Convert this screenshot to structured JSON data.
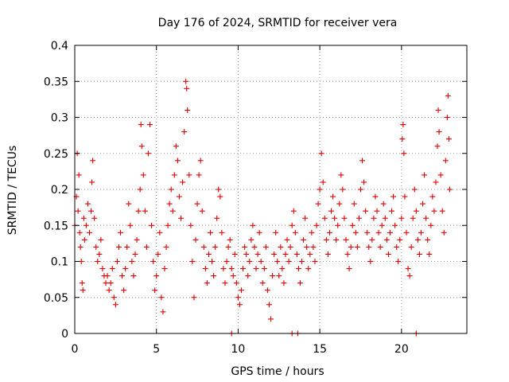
{
  "chart_data": {
    "type": "scatter",
    "title": "Day 176 of 2024, SRMTID for receiver vera",
    "xlabel": "GPS time / hours",
    "ylabel": "SRMTID / TECUs",
    "xlim": [
      0,
      24
    ],
    "ylim": [
      0,
      0.4
    ],
    "xticks": [
      0,
      5,
      10,
      15,
      20
    ],
    "xtick_labels": [
      "0",
      "5",
      "10",
      "15",
      "20"
    ],
    "yticks": [
      0,
      0.05,
      0.1,
      0.15,
      0.2,
      0.25,
      0.3,
      0.35,
      0.4
    ],
    "ytick_labels": [
      "0",
      "0.05",
      "0.1",
      "0.15",
      "0.2",
      "0.25",
      "0.3",
      "0.35",
      "0.4"
    ],
    "grid": true,
    "marker": "+",
    "color": "#e00000",
    "series": [
      {
        "name": "SRMTID",
        "points": [
          [
            0.0,
            0.15
          ],
          [
            0.1,
            0.19
          ],
          [
            0.15,
            0.25
          ],
          [
            0.2,
            0.17
          ],
          [
            0.25,
            0.22
          ],
          [
            0.3,
            0.14
          ],
          [
            0.35,
            0.12
          ],
          [
            0.4,
            0.1
          ],
          [
            0.45,
            0.07
          ],
          [
            0.5,
            0.06
          ],
          [
            0.55,
            0.16
          ],
          [
            0.6,
            0.13
          ],
          [
            0.7,
            0.15
          ],
          [
            0.8,
            0.18
          ],
          [
            0.9,
            0.14
          ],
          [
            1.0,
            0.17
          ],
          [
            1.05,
            0.21
          ],
          [
            1.1,
            0.24
          ],
          [
            1.2,
            0.16
          ],
          [
            1.3,
            0.12
          ],
          [
            1.4,
            0.1
          ],
          [
            1.5,
            0.11
          ],
          [
            1.6,
            0.13
          ],
          [
            1.7,
            0.09
          ],
          [
            1.8,
            0.08
          ],
          [
            1.9,
            0.07
          ],
          [
            2.0,
            0.08
          ],
          [
            2.1,
            0.06
          ],
          [
            2.2,
            0.07
          ],
          [
            2.3,
            0.09
          ],
          [
            2.4,
            0.05
          ],
          [
            2.5,
            0.04
          ],
          [
            2.6,
            0.1
          ],
          [
            2.7,
            0.12
          ],
          [
            2.8,
            0.14
          ],
          [
            2.9,
            0.08
          ],
          [
            3.0,
            0.06
          ],
          [
            3.1,
            0.09
          ],
          [
            3.2,
            0.12
          ],
          [
            3.3,
            0.18
          ],
          [
            3.4,
            0.15
          ],
          [
            3.5,
            0.1
          ],
          [
            3.6,
            0.08
          ],
          [
            3.7,
            0.11
          ],
          [
            3.8,
            0.13
          ],
          [
            3.9,
            0.17
          ],
          [
            4.0,
            0.2
          ],
          [
            4.05,
            0.29
          ],
          [
            4.1,
            0.26
          ],
          [
            4.2,
            0.22
          ],
          [
            4.3,
            0.17
          ],
          [
            4.4,
            0.12
          ],
          [
            4.5,
            0.25
          ],
          [
            4.6,
            0.29
          ],
          [
            4.7,
            0.15
          ],
          [
            4.8,
            0.1
          ],
          [
            4.9,
            0.06
          ],
          [
            5.0,
            0.08
          ],
          [
            5.1,
            0.11
          ],
          [
            5.2,
            0.14
          ],
          [
            5.3,
            0.05
          ],
          [
            5.4,
            0.03
          ],
          [
            5.5,
            0.09
          ],
          [
            5.6,
            0.12
          ],
          [
            5.7,
            0.15
          ],
          [
            5.8,
            0.18
          ],
          [
            5.9,
            0.2
          ],
          [
            6.0,
            0.17
          ],
          [
            6.1,
            0.22
          ],
          [
            6.2,
            0.26
          ],
          [
            6.3,
            0.24
          ],
          [
            6.4,
            0.19
          ],
          [
            6.5,
            0.16
          ],
          [
            6.6,
            0.21
          ],
          [
            6.7,
            0.28
          ],
          [
            6.8,
            0.35
          ],
          [
            6.85,
            0.34
          ],
          [
            6.9,
            0.31
          ],
          [
            7.0,
            0.22
          ],
          [
            7.1,
            0.15
          ],
          [
            7.2,
            0.1
          ],
          [
            7.3,
            0.05
          ],
          [
            7.4,
            0.13
          ],
          [
            7.5,
            0.18
          ],
          [
            7.6,
            0.22
          ],
          [
            7.7,
            0.24
          ],
          [
            7.8,
            0.17
          ],
          [
            7.9,
            0.12
          ],
          [
            8.0,
            0.09
          ],
          [
            8.1,
            0.07
          ],
          [
            8.2,
            0.11
          ],
          [
            8.3,
            0.14
          ],
          [
            8.4,
            0.1
          ],
          [
            8.5,
            0.08
          ],
          [
            8.6,
            0.12
          ],
          [
            8.7,
            0.16
          ],
          [
            8.8,
            0.2
          ],
          [
            8.9,
            0.19
          ],
          [
            9.0,
            0.14
          ],
          [
            9.1,
            0.09
          ],
          [
            9.2,
            0.07
          ],
          [
            9.3,
            0.1
          ],
          [
            9.4,
            0.12
          ],
          [
            9.5,
            0.13
          ],
          [
            9.6,
            0.09
          ],
          [
            9.7,
            0.08
          ],
          [
            9.8,
            0.11
          ],
          [
            9.9,
            0.07
          ],
          [
            10.0,
            0.05
          ],
          [
            10.1,
            0.04
          ],
          [
            10.2,
            0.06
          ],
          [
            10.3,
            0.09
          ],
          [
            10.4,
            0.12
          ],
          [
            10.5,
            0.11
          ],
          [
            10.6,
            0.08
          ],
          [
            10.7,
            0.1
          ],
          [
            10.8,
            0.13
          ],
          [
            10.9,
            0.15
          ],
          [
            11.0,
            0.12
          ],
          [
            11.1,
            0.09
          ],
          [
            11.2,
            0.11
          ],
          [
            11.3,
            0.14
          ],
          [
            11.4,
            0.1
          ],
          [
            11.5,
            0.07
          ],
          [
            11.6,
            0.09
          ],
          [
            11.7,
            0.12
          ],
          [
            11.8,
            0.06
          ],
          [
            11.9,
            0.04
          ],
          [
            12.0,
            0.02
          ],
          [
            12.1,
            0.08
          ],
          [
            12.2,
            0.11
          ],
          [
            12.3,
            0.14
          ],
          [
            12.4,
            0.1
          ],
          [
            12.5,
            0.08
          ],
          [
            12.6,
            0.12
          ],
          [
            12.7,
            0.09
          ],
          [
            12.8,
            0.07
          ],
          [
            12.9,
            0.11
          ],
          [
            13.0,
            0.13
          ],
          [
            13.1,
            0.1
          ],
          [
            13.2,
            0.12
          ],
          [
            13.3,
            0.15
          ],
          [
            13.4,
            0.17
          ],
          [
            13.5,
            0.14
          ],
          [
            13.6,
            0.11
          ],
          [
            13.7,
            0.09
          ],
          [
            13.8,
            0.07
          ],
          [
            13.9,
            0.1
          ],
          [
            14.0,
            0.13
          ],
          [
            14.1,
            0.16
          ],
          [
            14.2,
            0.12
          ],
          [
            14.3,
            0.09
          ],
          [
            14.4,
            0.11
          ],
          [
            14.5,
            0.14
          ],
          [
            14.6,
            0.12
          ],
          [
            14.7,
            0.1
          ],
          [
            14.8,
            0.15
          ],
          [
            14.9,
            0.18
          ],
          [
            15.0,
            0.2
          ],
          [
            15.1,
            0.25
          ],
          [
            15.2,
            0.21
          ],
          [
            15.3,
            0.16
          ],
          [
            15.4,
            0.13
          ],
          [
            15.5,
            0.11
          ],
          [
            15.6,
            0.14
          ],
          [
            15.7,
            0.17
          ],
          [
            15.8,
            0.19
          ],
          [
            15.9,
            0.16
          ],
          [
            16.0,
            0.13
          ],
          [
            16.1,
            0.15
          ],
          [
            16.2,
            0.18
          ],
          [
            16.3,
            0.22
          ],
          [
            16.4,
            0.2
          ],
          [
            16.5,
            0.16
          ],
          [
            16.6,
            0.13
          ],
          [
            16.7,
            0.11
          ],
          [
            16.8,
            0.09
          ],
          [
            16.9,
            0.12
          ],
          [
            17.0,
            0.15
          ],
          [
            17.1,
            0.18
          ],
          [
            17.2,
            0.14
          ],
          [
            17.3,
            0.12
          ],
          [
            17.4,
            0.16
          ],
          [
            17.5,
            0.2
          ],
          [
            17.6,
            0.24
          ],
          [
            17.7,
            0.21
          ],
          [
            17.8,
            0.17
          ],
          [
            17.9,
            0.14
          ],
          [
            18.0,
            0.12
          ],
          [
            18.1,
            0.1
          ],
          [
            18.2,
            0.13
          ],
          [
            18.3,
            0.16
          ],
          [
            18.4,
            0.19
          ],
          [
            18.5,
            0.17
          ],
          [
            18.6,
            0.14
          ],
          [
            18.7,
            0.12
          ],
          [
            18.8,
            0.15
          ],
          [
            18.9,
            0.18
          ],
          [
            19.0,
            0.16
          ],
          [
            19.1,
            0.13
          ],
          [
            19.2,
            0.11
          ],
          [
            19.3,
            0.14
          ],
          [
            19.4,
            0.17
          ],
          [
            19.5,
            0.19
          ],
          [
            19.6,
            0.15
          ],
          [
            19.7,
            0.12
          ],
          [
            19.8,
            0.1
          ],
          [
            19.9,
            0.13
          ],
          [
            20.0,
            0.16
          ],
          [
            20.05,
            0.27
          ],
          [
            20.1,
            0.29
          ],
          [
            20.15,
            0.25
          ],
          [
            20.2,
            0.19
          ],
          [
            20.3,
            0.14
          ],
          [
            20.4,
            0.09
          ],
          [
            20.5,
            0.08
          ],
          [
            20.6,
            0.12
          ],
          [
            20.7,
            0.16
          ],
          [
            20.8,
            0.2
          ],
          [
            20.9,
            0.17
          ],
          [
            21.0,
            0.13
          ],
          [
            21.1,
            0.11
          ],
          [
            21.2,
            0.14
          ],
          [
            21.3,
            0.18
          ],
          [
            21.4,
            0.22
          ],
          [
            21.5,
            0.16
          ],
          [
            21.6,
            0.13
          ],
          [
            21.7,
            0.11
          ],
          [
            21.8,
            0.15
          ],
          [
            21.9,
            0.19
          ],
          [
            22.0,
            0.17
          ],
          [
            22.1,
            0.21
          ],
          [
            22.2,
            0.26
          ],
          [
            22.25,
            0.31
          ],
          [
            22.3,
            0.28
          ],
          [
            22.4,
            0.22
          ],
          [
            22.5,
            0.17
          ],
          [
            22.6,
            0.14
          ],
          [
            22.7,
            0.24
          ],
          [
            22.8,
            0.3
          ],
          [
            22.85,
            0.33
          ],
          [
            22.9,
            0.27
          ],
          [
            22.95,
            0.2
          ]
        ]
      }
    ],
    "zero_markers_x": [
      9.6,
      13.3,
      13.65,
      20.9
    ]
  }
}
